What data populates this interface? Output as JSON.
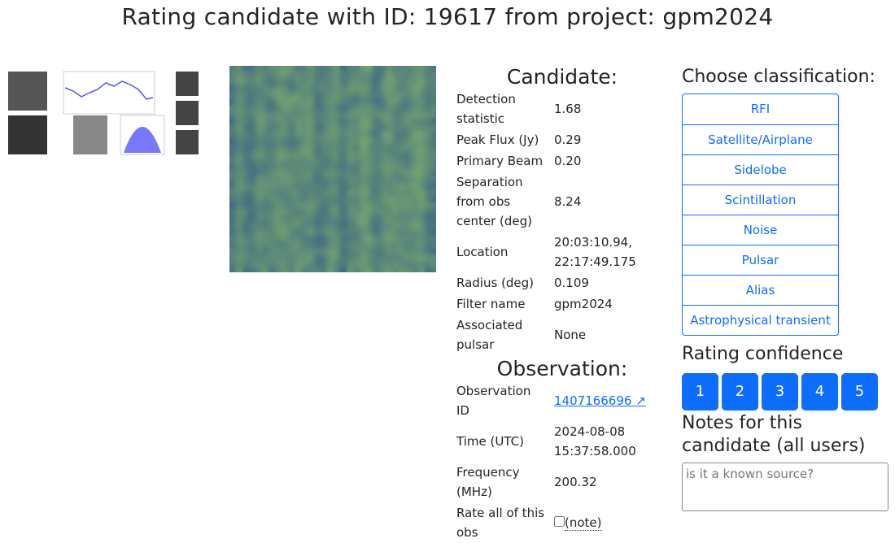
{
  "title": "Rating candidate with ID: 19617 from project: gpm2024",
  "candidate": {
    "heading": "Candidate:",
    "rows": [
      {
        "k": "Detection statistic",
        "v": "1.68"
      },
      {
        "k": "Peak Flux (Jy)",
        "v": "0.29"
      },
      {
        "k": "Primary Beam",
        "v": "0.20"
      },
      {
        "k": "Separation from obs center (deg)",
        "v": "8.24"
      },
      {
        "k": "Location",
        "v": "20:03:10.94, 22:17:49.175"
      },
      {
        "k": "Radius (deg)",
        "v": "0.109"
      },
      {
        "k": "Filter name",
        "v": "gpm2024"
      },
      {
        "k": "Associated pulsar",
        "v": "None"
      }
    ]
  },
  "observation": {
    "heading": "Observation:",
    "obs_id_label": "Observation ID",
    "obs_id": "1407166696",
    "time_label": "Time (UTC)",
    "time": "2024-08-08 15:37:58.000",
    "freq_label": "Frequency (MHz)",
    "freq": "200.32",
    "rate_all_label": "Rate all of this obs",
    "note": "(note)"
  },
  "classification": {
    "heading": "Choose classification:",
    "options": [
      "RFI",
      "Satellite/Airplane",
      "Sidelobe",
      "Scintillation",
      "Noise",
      "Pulsar",
      "Alias",
      "Astrophysical transient"
    ]
  },
  "confidence": {
    "heading": "Rating confidence",
    "levels": [
      "1",
      "2",
      "3",
      "4",
      "5"
    ]
  },
  "notes": {
    "heading": "Notes for this candidate (all users)",
    "placeholder": "is it a known source?"
  },
  "colors": {
    "accent": "#0d6efd"
  }
}
